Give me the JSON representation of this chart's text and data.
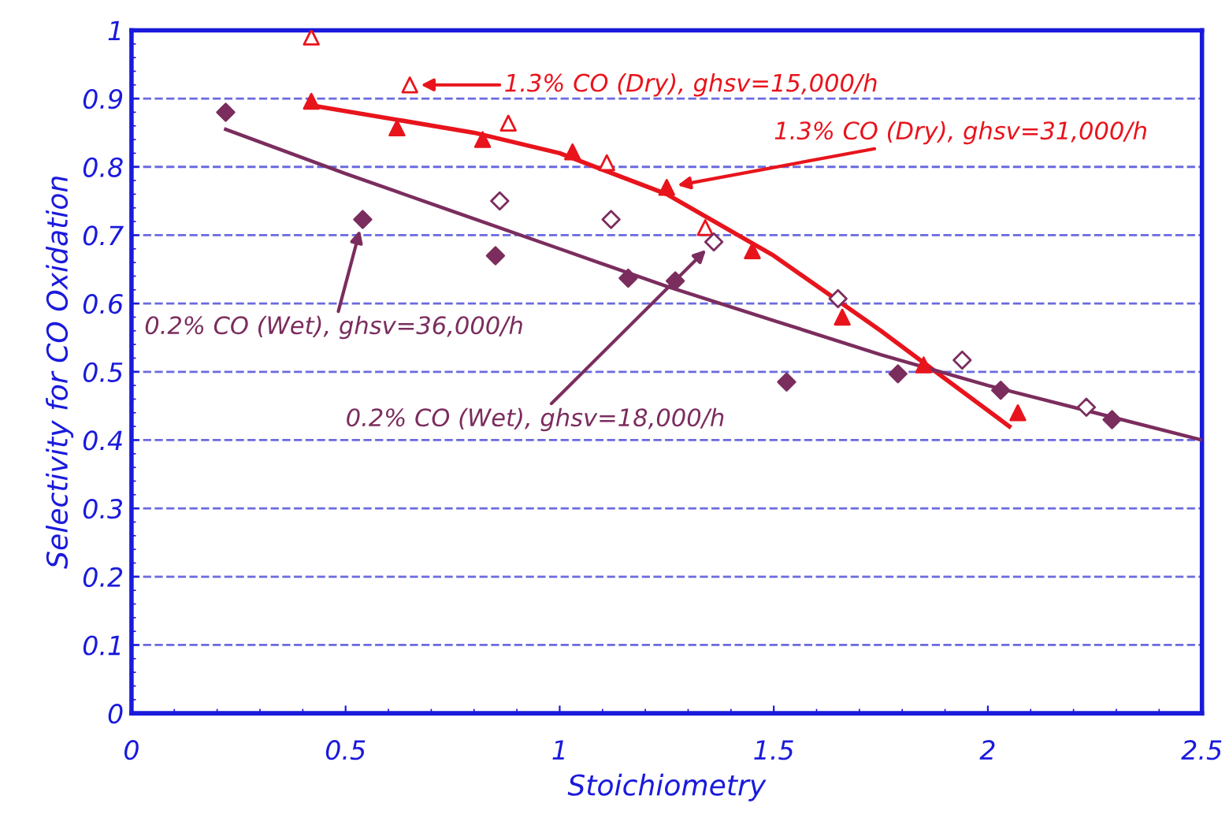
{
  "chart_data": {
    "type": "scatter",
    "xlabel": "Stoichiometry",
    "ylabel": "Selectivity for CO Oxidation",
    "xlim": [
      0,
      2.5
    ],
    "xticks": [
      0,
      0.5,
      1,
      1.5,
      2,
      2.5
    ],
    "ylim": [
      0,
      1
    ],
    "yticks": [
      0,
      0.1,
      0.2,
      0.3,
      0.4,
      0.5,
      0.6,
      0.7,
      0.8,
      0.9,
      1
    ],
    "grid": "y",
    "series": [
      {
        "name": "1.3% CO (Dry), ghsv=15,000/h",
        "color": "#e8141c",
        "marker": "triangle",
        "x": [
          0.42,
          0.65,
          0.88,
          1.11,
          1.34
        ],
        "values": [
          0.99,
          0.92,
          0.864,
          0.806,
          0.711
        ]
      },
      {
        "name": "1.3% CO (Dry), ghsv=31,000/h",
        "color": "#e8141c",
        "marker": "triangle",
        "x": [
          0.42,
          0.62,
          0.82,
          1.03,
          1.25,
          1.45,
          1.66,
          1.85,
          2.07
        ],
        "values": [
          0.896,
          0.857,
          0.84,
          0.822,
          0.77,
          0.677,
          0.58,
          0.51,
          0.44
        ]
      },
      {
        "name": "0.2% CO (Wet), ghsv=36,000/h",
        "color": "#7b2d5e",
        "marker": "diamond",
        "x": [
          0.22,
          0.54,
          0.85,
          1.16,
          1.27,
          1.53,
          1.79,
          2.03,
          2.29
        ],
        "values": [
          0.88,
          0.723,
          0.67,
          0.637,
          0.633,
          0.485,
          0.497,
          0.473,
          0.43
        ]
      },
      {
        "name": "0.2% CO (Wet), ghsv=18,000/h",
        "color": "#7b2d5e",
        "marker": "diamond",
        "x": [
          0.86,
          1.12,
          1.36,
          1.65,
          1.94,
          2.23
        ],
        "values": [
          0.75,
          0.723,
          0.69,
          0.607,
          0.517,
          0.448
        ]
      },
      {
        "type": "line",
        "color": "#e8141c",
        "x": [
          0.42,
          0.8,
          1.0,
          1.25,
          1.5,
          1.75,
          1.9,
          2.05
        ],
        "values": [
          0.89,
          0.85,
          0.82,
          0.76,
          0.67,
          0.56,
          0.49,
          0.42
        ]
      },
      {
        "type": "line",
        "color": "#7b2d5e",
        "x": [
          0.22,
          0.5,
          0.75,
          1.0,
          1.25,
          1.5,
          1.75,
          2.0,
          2.25,
          2.5
        ],
        "values": [
          0.855,
          0.79,
          0.735,
          0.68,
          0.625,
          0.575,
          0.525,
          0.48,
          0.44,
          0.4
        ]
      }
    ]
  }
}
